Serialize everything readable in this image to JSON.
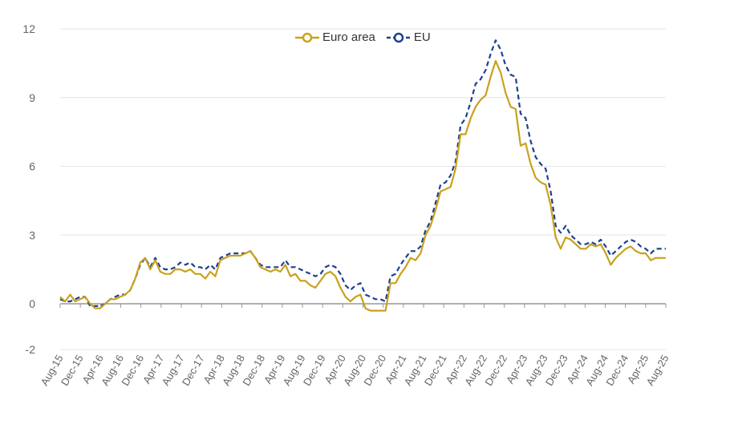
{
  "chart_data": {
    "type": "line",
    "title": "",
    "xlabel": "",
    "ylabel": "",
    "ylim": [
      -2,
      12
    ],
    "y_ticks": [
      12,
      9,
      6,
      3,
      0,
      -2
    ],
    "grid": "horizontal",
    "legend_position": "top-center",
    "x_tick_labels": [
      "Aug-15",
      "Dec-15",
      "Apr-16",
      "Aug-16",
      "Dec-16",
      "Apr-17",
      "Aug-17",
      "Dec-17",
      "Apr-18",
      "Aug-18",
      "Dec-18",
      "Apr-19",
      "Aug-19",
      "Dec-19",
      "Apr-20",
      "Aug-20",
      "Dec-20",
      "Apr-21",
      "Aug-21",
      "Dec-21",
      "Apr-22",
      "Aug-22",
      "Dec-22",
      "Apr-23",
      "Aug-23",
      "Dec-23",
      "Apr-24",
      "Aug-24",
      "Dec-24",
      "Apr-25",
      "Aug-25"
    ],
    "x_start": "Aug-15",
    "x_end": "Aug-25",
    "series": [
      {
        "name": "Euro area",
        "color": "#c9a21b",
        "style": "solid",
        "values": [
          0.3,
          0.1,
          0.4,
          0.1,
          0.2,
          0.3,
          0.0,
          -0.2,
          -0.2,
          0.0,
          0.2,
          0.2,
          0.3,
          0.4,
          0.6,
          1.1,
          1.8,
          2.0,
          1.5,
          1.9,
          1.4,
          1.3,
          1.3,
          1.5,
          1.5,
          1.4,
          1.5,
          1.3,
          1.3,
          1.1,
          1.4,
          1.2,
          1.9,
          2.0,
          2.1,
          2.1,
          2.1,
          2.2,
          2.3,
          2.0,
          1.6,
          1.5,
          1.4,
          1.5,
          1.4,
          1.7,
          1.2,
          1.3,
          1.0,
          1.0,
          0.8,
          0.7,
          1.0,
          1.3,
          1.4,
          1.2,
          0.7,
          0.3,
          0.1,
          0.3,
          0.4,
          -0.2,
          -0.3,
          -0.3,
          -0.3,
          -0.3,
          0.9,
          0.9,
          1.3,
          1.6,
          2.0,
          1.9,
          2.2,
          3.0,
          3.4,
          4.1,
          4.9,
          5.0,
          5.1,
          5.9,
          7.4,
          7.4,
          8.1,
          8.6,
          8.9,
          9.1,
          9.9,
          10.6,
          10.1,
          9.2,
          8.6,
          8.5,
          6.9,
          7.0,
          6.1,
          5.5,
          5.3,
          5.2,
          4.3,
          2.9,
          2.4,
          2.9,
          2.8,
          2.6,
          2.4,
          2.4,
          2.6,
          2.5,
          2.6,
          2.2,
          1.7,
          2.0,
          2.2,
          2.4,
          2.5,
          2.3,
          2.2,
          2.2,
          1.9,
          2.0,
          2.0,
          2.0
        ]
      },
      {
        "name": "EU",
        "color": "#1f3f8f",
        "style": "dashed",
        "values": [
          0.2,
          0.1,
          0.1,
          0.2,
          0.3,
          0.3,
          -0.1,
          -0.1,
          -0.1,
          0.0,
          0.2,
          0.3,
          0.4,
          0.4,
          0.6,
          1.1,
          1.7,
          2.0,
          1.6,
          2.0,
          1.6,
          1.5,
          1.5,
          1.6,
          1.8,
          1.7,
          1.8,
          1.6,
          1.6,
          1.5,
          1.7,
          1.5,
          2.0,
          2.1,
          2.2,
          2.2,
          2.2,
          2.2,
          2.3,
          2.0,
          1.7,
          1.6,
          1.6,
          1.6,
          1.6,
          1.9,
          1.6,
          1.6,
          1.5,
          1.4,
          1.3,
          1.2,
          1.3,
          1.6,
          1.7,
          1.6,
          1.3,
          0.8,
          0.6,
          0.8,
          0.9,
          0.4,
          0.3,
          0.2,
          0.2,
          0.1,
          1.2,
          1.3,
          1.7,
          2.0,
          2.3,
          2.3,
          2.5,
          3.2,
          3.6,
          4.4,
          5.2,
          5.3,
          5.6,
          6.2,
          7.8,
          8.1,
          8.8,
          9.6,
          9.8,
          10.2,
          10.9,
          11.5,
          11.1,
          10.4,
          10.0,
          9.9,
          8.3,
          8.1,
          7.1,
          6.4,
          6.1,
          5.9,
          4.9,
          3.4,
          3.1,
          3.4,
          3.0,
          2.8,
          2.6,
          2.6,
          2.7,
          2.6,
          2.8,
          2.5,
          2.1,
          2.3,
          2.5,
          2.7,
          2.8,
          2.7,
          2.5,
          2.4,
          2.2,
          2.4,
          2.4,
          2.4
        ]
      }
    ]
  }
}
